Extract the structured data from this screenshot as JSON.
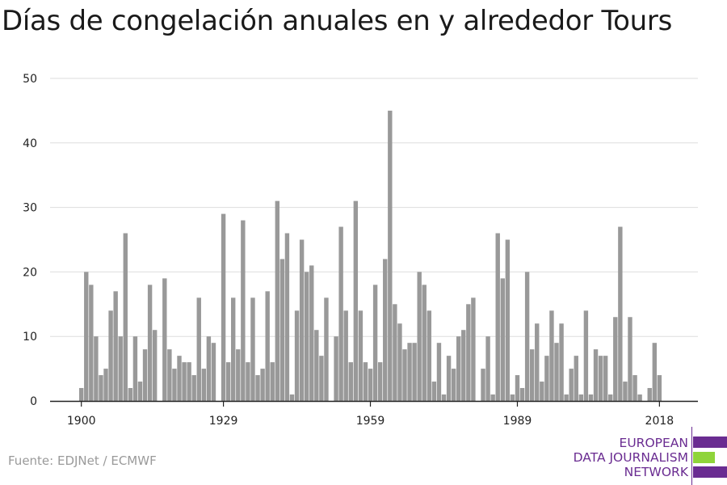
{
  "title": "Días de congelación anuales en y alrededor Tours",
  "source": "Fuente: EDJNet / ECMWF",
  "logo": {
    "line1": "EUROPEAN",
    "line2": "DATA JOURNALISM",
    "line3": "NETWORK",
    "colors": {
      "purple": "#6a2c91",
      "green": "#8fd43a"
    }
  },
  "colors": {
    "bar": "#999999",
    "grid": "#dddddd",
    "axis": "#222222"
  },
  "chart_data": {
    "type": "bar",
    "title": "Días de congelación anuales en y alrededor Tours",
    "xlabel": "",
    "ylabel": "",
    "ylim": [
      0,
      50
    ],
    "y_ticks": [
      0,
      10,
      20,
      30,
      40,
      50
    ],
    "x_ticks": [
      1900,
      1929,
      1959,
      1989,
      2018
    ],
    "grid": true,
    "x": [
      1900,
      1901,
      1902,
      1903,
      1904,
      1905,
      1906,
      1907,
      1908,
      1909,
      1910,
      1911,
      1912,
      1913,
      1914,
      1915,
      1916,
      1917,
      1918,
      1919,
      1920,
      1921,
      1922,
      1923,
      1924,
      1925,
      1926,
      1927,
      1928,
      1929,
      1930,
      1931,
      1932,
      1933,
      1934,
      1935,
      1936,
      1937,
      1938,
      1939,
      1940,
      1941,
      1942,
      1943,
      1944,
      1945,
      1946,
      1947,
      1948,
      1949,
      1950,
      1951,
      1952,
      1953,
      1954,
      1955,
      1956,
      1957,
      1958,
      1959,
      1960,
      1961,
      1962,
      1963,
      1964,
      1965,
      1966,
      1967,
      1968,
      1969,
      1970,
      1971,
      1972,
      1973,
      1974,
      1975,
      1976,
      1977,
      1978,
      1979,
      1980,
      1981,
      1982,
      1983,
      1984,
      1985,
      1986,
      1987,
      1988,
      1989,
      1990,
      1991,
      1992,
      1993,
      1994,
      1995,
      1996,
      1997,
      1998,
      1999,
      2000,
      2001,
      2002,
      2003,
      2004,
      2005,
      2006,
      2007,
      2008,
      2009,
      2010,
      2011,
      2012,
      2013,
      2014,
      2015,
      2016,
      2017,
      2018
    ],
    "values": [
      2,
      20,
      18,
      10,
      4,
      5,
      14,
      17,
      10,
      26,
      2,
      10,
      3,
      8,
      18,
      11,
      0,
      19,
      8,
      5,
      7,
      6,
      6,
      4,
      16,
      5,
      10,
      9,
      0,
      29,
      6,
      16,
      8,
      28,
      6,
      16,
      4,
      5,
      17,
      6,
      31,
      22,
      26,
      1,
      14,
      25,
      20,
      21,
      11,
      7,
      16,
      0,
      10,
      27,
      14,
      6,
      31,
      14,
      6,
      5,
      18,
      6,
      22,
      45,
      15,
      12,
      8,
      9,
      9,
      20,
      18,
      14,
      3,
      9,
      1,
      7,
      5,
      10,
      11,
      15,
      16,
      0,
      5,
      10,
      1,
      26,
      19,
      25,
      1,
      4,
      2,
      20,
      8,
      12,
      3,
      7,
      14,
      9,
      12,
      1,
      5,
      7,
      1,
      14,
      1,
      8,
      7,
      7,
      1,
      13,
      27,
      3,
      13,
      4,
      1,
      0,
      2,
      9,
      4
    ]
  }
}
